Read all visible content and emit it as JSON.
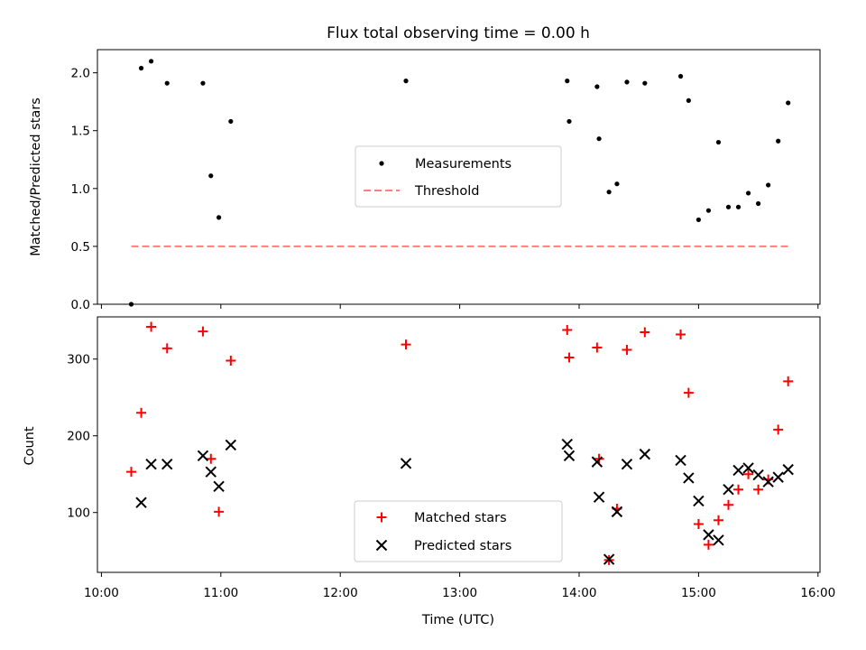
{
  "chart_data": [
    {
      "type": "scatter",
      "title": "Flux total observing time = 0.00 h",
      "ylabel": "Matched/Predicted stars",
      "ylim": [
        0,
        2.2
      ],
      "yticks": [
        "0.0",
        "0.5",
        "1.0",
        "1.5",
        "2.0"
      ],
      "grid": false,
      "legend_position": "center",
      "legend": [
        "Measurements",
        "Threshold"
      ],
      "colors": {
        "measurements": "#000000",
        "threshold": "#ff7f7f"
      },
      "series": [
        {
          "name": "Measurements",
          "x": [
            "10:15",
            "10:20",
            "10:25",
            "10:33",
            "10:51",
            "10:55",
            "10:59",
            "11:05",
            "12:33",
            "13:54",
            "13:55",
            "14:09",
            "14:10",
            "14:15",
            "14:19",
            "14:24",
            "14:33",
            "14:51",
            "14:55",
            "15:00",
            "15:05",
            "15:10",
            "15:15",
            "15:20",
            "15:25",
            "15:30",
            "15:35",
            "15:40",
            "15:45"
          ],
          "y": [
            0.0,
            2.04,
            2.1,
            1.91,
            1.91,
            1.11,
            0.75,
            1.58,
            1.93,
            1.93,
            1.58,
            1.88,
            1.43,
            0.97,
            1.04,
            1.92,
            1.91,
            1.97,
            1.76,
            0.73,
            0.81,
            1.4,
            0.84,
            0.84,
            0.96,
            0.87,
            1.03,
            1.41,
            1.74
          ]
        },
        {
          "name": "Threshold",
          "x": [
            "10:15",
            "15:45"
          ],
          "y": [
            0.5,
            0.5
          ]
        }
      ]
    },
    {
      "type": "scatter",
      "xlabel": "Time (UTC)",
      "ylabel": "Count",
      "ylim": [
        22,
        355
      ],
      "yticks": [
        "100",
        "200",
        "300"
      ],
      "xticks": [
        "10:00",
        "11:00",
        "12:00",
        "13:00",
        "14:00",
        "15:00",
        "16:00"
      ],
      "xlim": [
        "09:58",
        "16:01"
      ],
      "grid": false,
      "legend_position": "lower center",
      "legend": [
        "Matched stars",
        "Predicted stars"
      ],
      "colors": {
        "matched": "#ff0000",
        "predicted": "#000000"
      },
      "series": [
        {
          "name": "Matched stars",
          "marker": "+",
          "x": [
            "10:15",
            "10:20",
            "10:25",
            "10:33",
            "10:51",
            "10:55",
            "10:59",
            "11:05",
            "12:33",
            "13:54",
            "13:55",
            "14:09",
            "14:10",
            "14:15",
            "14:19",
            "14:24",
            "14:33",
            "14:51",
            "14:55",
            "15:00",
            "15:05",
            "15:10",
            "15:15",
            "15:20",
            "15:25",
            "15:30",
            "15:35",
            "15:40",
            "15:45"
          ],
          "y": [
            153,
            230,
            342,
            314,
            336,
            170,
            101,
            298,
            319,
            338,
            302,
            315,
            170,
            38,
            105,
            312,
            335,
            332,
            256,
            85,
            58,
            90,
            110,
            130,
            150,
            130,
            143,
            208,
            271
          ]
        },
        {
          "name": "Predicted stars",
          "marker": "x",
          "x": [
            "10:20",
            "10:25",
            "10:33",
            "10:51",
            "10:55",
            "10:59",
            "11:05",
            "12:33",
            "13:54",
            "13:55",
            "14:09",
            "14:10",
            "14:15",
            "14:19",
            "14:24",
            "14:33",
            "14:51",
            "14:55",
            "15:00",
            "15:05",
            "15:10",
            "15:15",
            "15:20",
            "15:25",
            "15:30",
            "15:35",
            "15:40",
            "15:45"
          ],
          "y": [
            113,
            163,
            163,
            174,
            153,
            134,
            188,
            164,
            189,
            174,
            166,
            120,
            39,
            101,
            163,
            176,
            168,
            145,
            115,
            71,
            64,
            130,
            155,
            158,
            149,
            140,
            146,
            156
          ]
        }
      ]
    }
  ]
}
